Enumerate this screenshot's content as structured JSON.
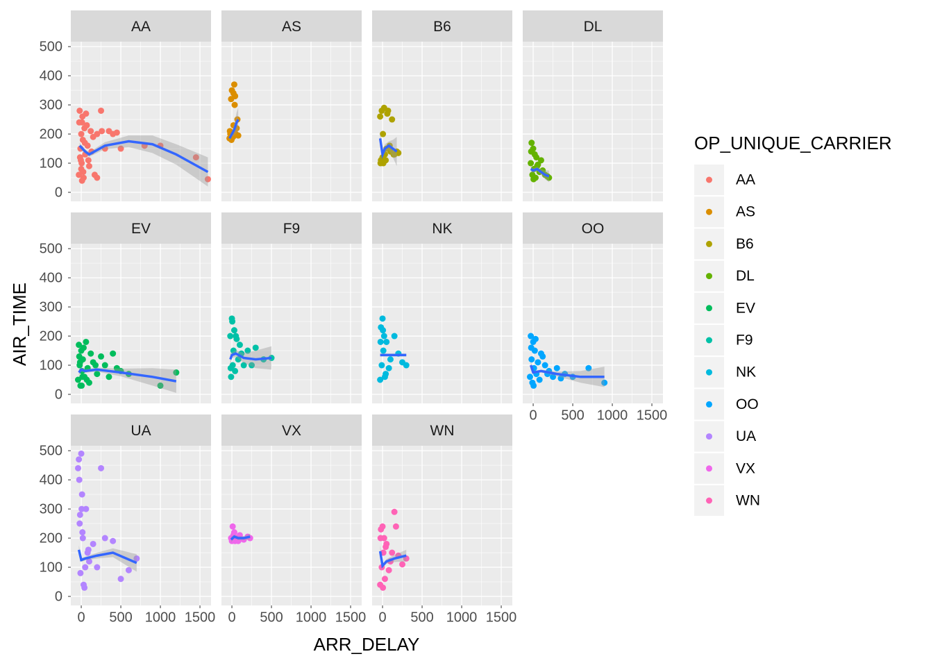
{
  "chart_data": {
    "type": "scatter",
    "x_label": "ARR_DELAY",
    "y_label": "AIR_TIME",
    "legend_title": "OP_UNIQUE_CARRIER",
    "xlim": [
      -132,
      1640
    ],
    "ylim": [
      -31,
      517
    ],
    "xticks": [
      0,
      500,
      1000,
      1500
    ],
    "yticks": [
      0,
      100,
      200,
      300,
      400,
      500
    ],
    "minor_xticks": [
      250,
      750,
      1250
    ],
    "minor_yticks": [
      50,
      150,
      250,
      350,
      450
    ],
    "grid": true,
    "smooth_color": "#3366FF",
    "panels": [
      {
        "name": "AA",
        "color": "#F8766D",
        "x": [
          -30,
          -20,
          -10,
          0,
          5,
          10,
          20,
          30,
          40,
          50,
          60,
          80,
          100,
          120,
          150,
          200,
          250,
          300,
          350,
          400,
          450,
          -15,
          0,
          15,
          25,
          45,
          70,
          90,
          130,
          170,
          200,
          500,
          800,
          1000,
          1450,
          1600,
          260,
          -25,
          -5,
          10
        ],
        "y": [
          60,
          280,
          150,
          200,
          100,
          240,
          180,
          50,
          220,
          130,
          270,
          160,
          90,
          210,
          190,
          200,
          280,
          150,
          210,
          200,
          205,
          120,
          80,
          260,
          70,
          170,
          230,
          110,
          140,
          60,
          50,
          150,
          160,
          160,
          120,
          45,
          210,
          240,
          110,
          40
        ],
        "smooth_x": [
          -20,
          50,
          100,
          300,
          600,
          900,
          1200,
          1600
        ],
        "smooth_y": [
          160,
          140,
          130,
          160,
          175,
          165,
          130,
          70
        ],
        "smooth_lower": [
          150,
          132,
          122,
          148,
          155,
          135,
          95,
          20
        ],
        "smooth_upper": [
          170,
          148,
          138,
          172,
          195,
          195,
          165,
          120
        ]
      },
      {
        "name": "AS",
        "color": "#DB8E00",
        "x": [
          -30,
          -20,
          -10,
          0,
          10,
          20,
          30,
          40,
          50,
          -25,
          -5,
          15,
          35,
          60,
          70,
          80,
          20,
          40
        ],
        "y": [
          185,
          200,
          320,
          350,
          190,
          340,
          370,
          330,
          200,
          210,
          180,
          190,
          300,
          220,
          250,
          195,
          230,
          330
        ],
        "smooth_x": [
          -30,
          0,
          30,
          60,
          80
        ],
        "smooth_y": [
          185,
          200,
          215,
          240,
          250
        ],
        "smooth_lower": [
          175,
          190,
          195,
          205,
          210
        ],
        "smooth_upper": [
          195,
          210,
          235,
          275,
          290
        ]
      },
      {
        "name": "B6",
        "color": "#AEA200",
        "x": [
          -30,
          -20,
          -10,
          0,
          10,
          20,
          30,
          50,
          70,
          100,
          120,
          150,
          180,
          -25,
          5,
          40,
          60,
          90,
          140,
          200
        ],
        "y": [
          260,
          110,
          280,
          120,
          100,
          290,
          130,
          150,
          280,
          140,
          250,
          130,
          140,
          100,
          200,
          110,
          270,
          160,
          130,
          135
        ],
        "smooth_x": [
          -30,
          0,
          30,
          80,
          130,
          180
        ],
        "smooth_y": [
          185,
          130,
          150,
          160,
          150,
          140
        ],
        "smooth_lower": [
          160,
          120,
          135,
          145,
          120,
          90
        ],
        "smooth_upper": [
          210,
          140,
          165,
          175,
          180,
          190
        ]
      },
      {
        "name": "DL",
        "color": "#64B200",
        "x": [
          -30,
          -20,
          -10,
          0,
          10,
          20,
          30,
          50,
          80,
          100,
          150,
          200,
          -25,
          5,
          40,
          60,
          120,
          180
        ],
        "y": [
          100,
          170,
          60,
          150,
          80,
          130,
          50,
          90,
          70,
          110,
          60,
          50,
          140,
          45,
          120,
          95,
          75,
          55
        ],
        "smooth_x": [
          -30,
          0,
          50,
          100,
          150,
          200
        ],
        "smooth_y": [
          80,
          75,
          80,
          70,
          60,
          55
        ],
        "smooth_lower": [
          70,
          68,
          72,
          60,
          45,
          35
        ],
        "smooth_upper": [
          90,
          82,
          88,
          80,
          75,
          75
        ]
      },
      {
        "name": "EV",
        "color": "#00BD5C",
        "x": [
          -40,
          -30,
          -20,
          -10,
          0,
          10,
          20,
          40,
          60,
          80,
          100,
          150,
          200,
          250,
          300,
          400,
          500,
          600,
          -25,
          5,
          30,
          70,
          120,
          180,
          350,
          450,
          1000,
          1200,
          -15,
          15
        ],
        "y": [
          50,
          170,
          100,
          30,
          150,
          80,
          120,
          60,
          180,
          90,
          40,
          110,
          70,
          130,
          100,
          140,
          80,
          70,
          130,
          30,
          160,
          50,
          140,
          100,
          60,
          90,
          30,
          75,
          110,
          60
        ],
        "smooth_x": [
          -30,
          0,
          50,
          200,
          500,
          900,
          1200
        ],
        "smooth_y": [
          75,
          85,
          80,
          85,
          75,
          60,
          45
        ],
        "smooth_lower": [
          65,
          78,
          74,
          78,
          62,
          30,
          5
        ],
        "smooth_upper": [
          85,
          92,
          86,
          92,
          88,
          90,
          85
        ]
      },
      {
        "name": "F9",
        "color": "#00C1A7",
        "x": [
          -20,
          -10,
          0,
          10,
          20,
          30,
          40,
          60,
          80,
          100,
          150,
          200,
          250,
          300,
          400,
          500,
          -15,
          5,
          50,
          120
        ],
        "y": [
          200,
          60,
          260,
          100,
          150,
          220,
          80,
          190,
          120,
          170,
          100,
          150,
          100,
          160,
          120,
          125,
          90,
          250,
          200,
          140
        ],
        "smooth_x": [
          -20,
          0,
          50,
          150,
          300,
          500
        ],
        "smooth_y": [
          120,
          135,
          140,
          125,
          120,
          125
        ],
        "smooth_lower": [
          100,
          125,
          128,
          108,
          90,
          85
        ],
        "smooth_upper": [
          140,
          145,
          152,
          142,
          150,
          165
        ]
      },
      {
        "name": "NK",
        "color": "#00BADE",
        "x": [
          -30,
          -20,
          -10,
          0,
          10,
          20,
          30,
          50,
          80,
          100,
          150,
          200,
          250,
          300,
          -25,
          5,
          40
        ],
        "y": [
          50,
          230,
          100,
          260,
          150,
          200,
          60,
          180,
          90,
          120,
          200,
          140,
          110,
          100,
          180,
          220,
          70
        ],
        "smooth_x": [
          -30,
          300
        ],
        "smooth_y": [
          135,
          135
        ],
        "smooth_lower": [
          130,
          130
        ],
        "smooth_upper": [
          140,
          140
        ]
      },
      {
        "name": "OO",
        "color": "#00A6FF",
        "x": [
          -40,
          -30,
          -20,
          -10,
          0,
          10,
          20,
          40,
          60,
          80,
          100,
          150,
          200,
          250,
          300,
          400,
          500,
          700,
          900,
          -25,
          5,
          30,
          120,
          180,
          350
        ],
        "y": [
          60,
          200,
          120,
          40,
          180,
          90,
          150,
          70,
          110,
          50,
          140,
          100,
          80,
          60,
          90,
          70,
          60,
          90,
          40,
          160,
          30,
          190,
          130,
          70,
          55
        ],
        "smooth_x": [
          -30,
          0,
          100,
          300,
          600,
          900
        ],
        "smooth_y": [
          100,
          75,
          80,
          70,
          60,
          60
        ],
        "smooth_lower": [
          85,
          70,
          75,
          62,
          40,
          25
        ],
        "smooth_upper": [
          115,
          80,
          85,
          78,
          80,
          95
        ]
      },
      {
        "name": "UA",
        "color": "#B385FF",
        "x": [
          -40,
          -30,
          -20,
          -10,
          0,
          10,
          20,
          40,
          60,
          80,
          100,
          150,
          200,
          250,
          300,
          400,
          500,
          600,
          700,
          -25,
          5,
          30,
          90,
          -15,
          15,
          50
        ],
        "y": [
          440,
          470,
          250,
          80,
          490,
          350,
          200,
          30,
          300,
          150,
          120,
          180,
          100,
          440,
          200,
          190,
          60,
          90,
          130,
          400,
          300,
          40,
          160,
          280,
          220,
          100
        ],
        "smooth_x": [
          -30,
          0,
          50,
          200,
          400,
          700
        ],
        "smooth_y": [
          160,
          125,
          130,
          140,
          150,
          115
        ],
        "smooth_lower": [
          145,
          118,
          124,
          130,
          135,
          85
        ],
        "smooth_upper": [
          175,
          132,
          136,
          150,
          165,
          145
        ]
      },
      {
        "name": "VX",
        "color": "#EF67EB",
        "x": [
          -10,
          0,
          10,
          20,
          40,
          60,
          100,
          150,
          200,
          230,
          30,
          80
        ],
        "y": [
          200,
          190,
          240,
          210,
          190,
          200,
          210,
          195,
          205,
          200,
          220,
          190
        ],
        "smooth_x": [
          -10,
          30,
          80,
          150,
          230
        ],
        "smooth_y": [
          195,
          205,
          200,
          200,
          205
        ],
        "smooth_lower": [
          185,
          198,
          193,
          193,
          195
        ],
        "smooth_upper": [
          205,
          212,
          207,
          207,
          215
        ]
      },
      {
        "name": "WN",
        "color": "#FF63B6",
        "x": [
          -30,
          -20,
          -10,
          0,
          10,
          20,
          30,
          50,
          80,
          100,
          150,
          200,
          250,
          300,
          -25,
          5,
          40,
          170,
          120
        ],
        "y": [
          40,
          230,
          100,
          240,
          150,
          200,
          60,
          180,
          90,
          120,
          290,
          140,
          110,
          130,
          200,
          30,
          170,
          240,
          150
        ],
        "smooth_x": [
          -30,
          0,
          50,
          150,
          300
        ],
        "smooth_y": [
          155,
          105,
          120,
          130,
          140
        ],
        "smooth_lower": [
          135,
          98,
          112,
          118,
          120
        ],
        "smooth_upper": [
          175,
          112,
          128,
          142,
          160
        ]
      }
    ]
  }
}
